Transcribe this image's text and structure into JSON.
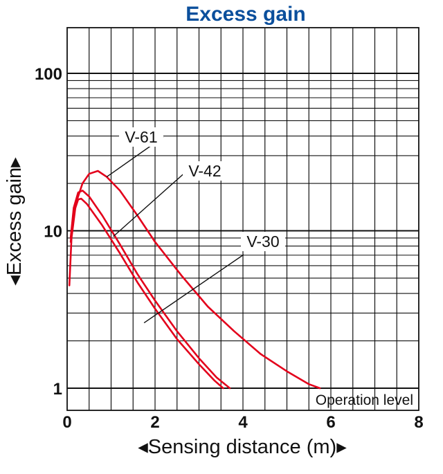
{
  "chart_data": {
    "type": "line",
    "title": "Excess gain",
    "xlabel": "◂Sensing distance (m)▸",
    "ylabel": "◂Excess gain▸",
    "xlim": [
      0,
      8
    ],
    "ylim": [
      0.7,
      200
    ],
    "yscale": "log",
    "x_ticks": [
      "0",
      "2",
      "4",
      "6",
      "8"
    ],
    "y_ticks": [
      "1",
      "10",
      "100"
    ],
    "grid": true,
    "annotation": "Operation level",
    "series": [
      {
        "name": "V-61",
        "color": "#e3001b",
        "points": [
          [
            0.05,
            4.5
          ],
          [
            0.1,
            9
          ],
          [
            0.2,
            15
          ],
          [
            0.35,
            20
          ],
          [
            0.5,
            23
          ],
          [
            0.7,
            24
          ],
          [
            0.9,
            22
          ],
          [
            1.2,
            18
          ],
          [
            1.6,
            12.5
          ],
          [
            2.0,
            8.5
          ],
          [
            2.6,
            5.2
          ],
          [
            3.2,
            3.3
          ],
          [
            3.8,
            2.3
          ],
          [
            4.4,
            1.65
          ],
          [
            5.0,
            1.28
          ],
          [
            5.5,
            1.06
          ],
          [
            5.75,
            1.0
          ]
        ]
      },
      {
        "name": "V-42",
        "color": "#e3001b",
        "points": [
          [
            0.08,
            9
          ],
          [
            0.15,
            14
          ],
          [
            0.25,
            17.5
          ],
          [
            0.35,
            18
          ],
          [
            0.5,
            16.5
          ],
          [
            0.8,
            12.5
          ],
          [
            1.2,
            8.2
          ],
          [
            1.6,
            5.3
          ],
          [
            2.0,
            3.6
          ],
          [
            2.5,
            2.3
          ],
          [
            3.0,
            1.55
          ],
          [
            3.4,
            1.17
          ],
          [
            3.7,
            1.0
          ]
        ]
      },
      {
        "name": "V-30",
        "color": "#e3001b",
        "points": [
          [
            0.08,
            8.5
          ],
          [
            0.15,
            13
          ],
          [
            0.25,
            15.8
          ],
          [
            0.32,
            16
          ],
          [
            0.45,
            14.8
          ],
          [
            0.8,
            10.8
          ],
          [
            1.2,
            7.2
          ],
          [
            1.6,
            4.7
          ],
          [
            2.0,
            3.2
          ],
          [
            2.5,
            2.05
          ],
          [
            3.0,
            1.42
          ],
          [
            3.35,
            1.12
          ],
          [
            3.55,
            1.0
          ]
        ]
      }
    ]
  }
}
